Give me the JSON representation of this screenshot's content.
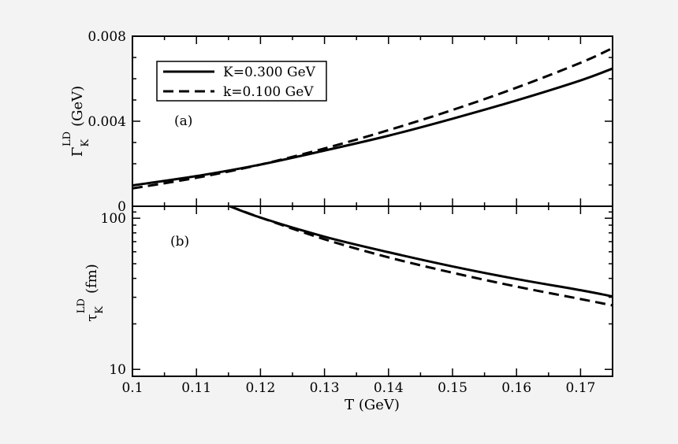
{
  "chart_data": [
    {
      "panel": "(a)",
      "type": "line",
      "ylabel_symbol": "Γ",
      "ylabel_sub": "K",
      "ylabel_sup": "LD",
      "ylabel_unit": "(GeV)",
      "xlim": [
        0.1,
        0.175
      ],
      "ylim": [
        0,
        0.008
      ],
      "yscale": "linear",
      "yticks": [
        0,
        0.004,
        0.008
      ],
      "yticklabels": [
        "0",
        "0.004",
        "0.008"
      ],
      "legend": {
        "position": "top-left",
        "entries": [
          {
            "label": "K=0.300 GeV",
            "style": "solid"
          },
          {
            "label": "k=0.100 GeV",
            "style": "dashed"
          }
        ]
      },
      "series": [
        {
          "name": "K=0.300 GeV",
          "style": "solid",
          "x": [
            0.1,
            0.11,
            0.12,
            0.13,
            0.14,
            0.15,
            0.16,
            0.17,
            0.175
          ],
          "values": [
            0.00098,
            0.00142,
            0.00196,
            0.00262,
            0.00332,
            0.00412,
            0.00498,
            0.00592,
            0.00648
          ]
        },
        {
          "name": "k=0.100 GeV",
          "style": "dashed",
          "x": [
            0.1,
            0.11,
            0.12,
            0.13,
            0.14,
            0.15,
            0.16,
            0.17,
            0.175
          ],
          "values": [
            0.00084,
            0.00134,
            0.00196,
            0.00272,
            0.00358,
            0.00453,
            0.00558,
            0.00675,
            0.00744
          ]
        }
      ]
    },
    {
      "panel": "(b)",
      "type": "line",
      "ylabel_symbol": "τ",
      "ylabel_sub": "K",
      "ylabel_sup": "LD",
      "ylabel_unit": "(fm)",
      "xlabel": "T (GeV)",
      "xlim": [
        0.1,
        0.175
      ],
      "xticks": [
        0.1,
        0.11,
        0.12,
        0.13,
        0.14,
        0.15,
        0.16,
        0.17
      ],
      "xticklabels": [
        "0.1",
        "0.11",
        "0.12",
        "0.13",
        "0.14",
        "0.15",
        "0.16",
        "0.17"
      ],
      "ylim": [
        9,
        120
      ],
      "yscale": "log",
      "yticks": [
        10,
        100
      ],
      "yticklabels": [
        "10",
        "100"
      ],
      "series": [
        {
          "name": "K=0.300 GeV",
          "style": "solid",
          "x": [
            0.1152,
            0.12,
            0.13,
            0.14,
            0.15,
            0.16,
            0.17,
            0.175
          ],
          "values": [
            120,
            101,
            75.5,
            59.6,
            48.0,
            39.6,
            33.4,
            30.4
          ]
        },
        {
          "name": "k=0.100 GeV",
          "style": "dashed",
          "x": [
            0.1152,
            0.12,
            0.13,
            0.14,
            0.15,
            0.16,
            0.17,
            0.175
          ],
          "values": [
            120,
            101,
            72.6,
            55.1,
            43.6,
            35.3,
            29.2,
            26.5
          ]
        }
      ]
    }
  ]
}
